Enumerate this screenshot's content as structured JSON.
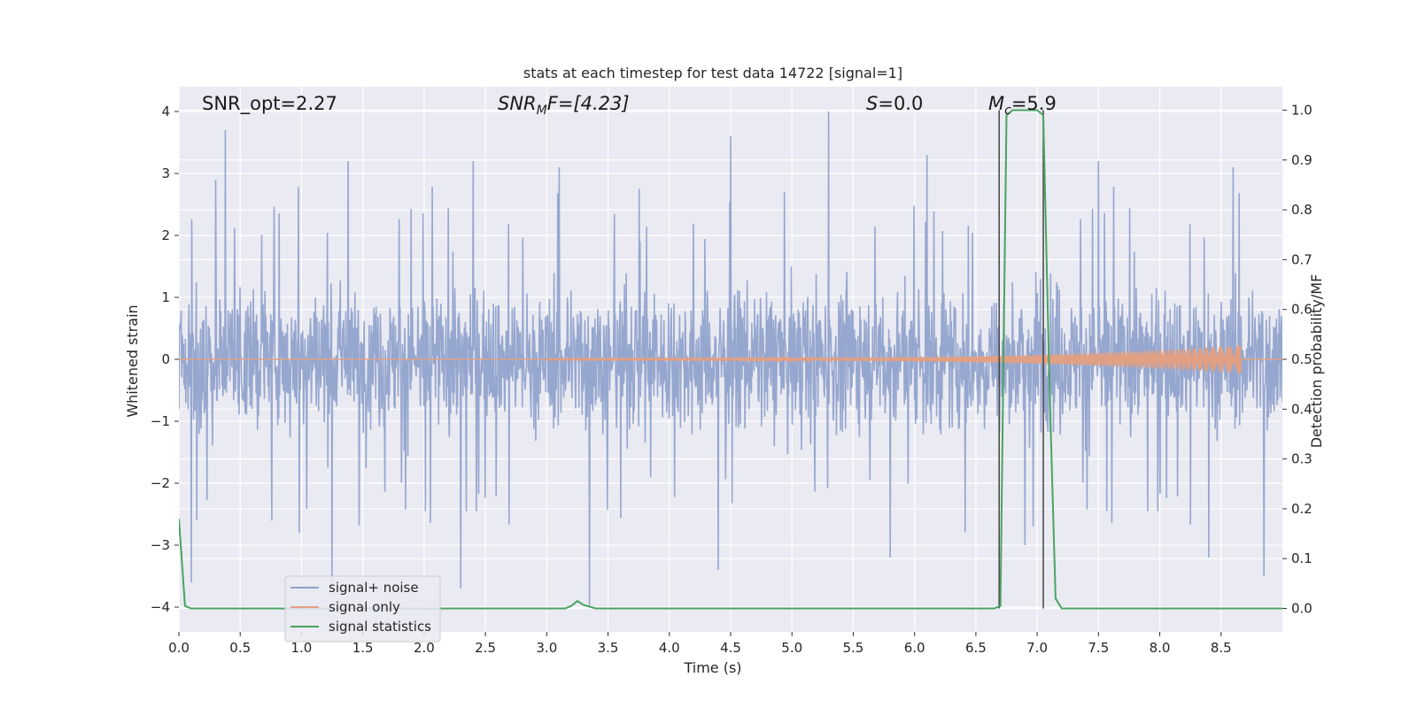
{
  "chart_data": {
    "type": "line",
    "title": "stats at each timestep for test data 14722 [signal=1]",
    "xlabel": "Time (s)",
    "ylabel_left": "Whitened strain",
    "ylabel_right": "Detection probability/MF",
    "xlim": [
      0.0,
      9.0
    ],
    "ylim_left": [
      -4.4,
      4.4
    ],
    "ylim_right": [
      -0.047,
      1.047
    ],
    "x_ticks": [
      "0.0",
      "0.5",
      "1.0",
      "1.5",
      "2.0",
      "2.5",
      "3.0",
      "3.5",
      "4.0",
      "4.5",
      "5.0",
      "5.5",
      "6.0",
      "6.5",
      "7.0",
      "7.5",
      "8.0",
      "8.5"
    ],
    "y_left_ticks": [
      "4",
      "3",
      "2",
      "1",
      "0",
      "−1",
      "−2",
      "−3",
      "−4"
    ],
    "y_right_ticks": [
      "1.0",
      "0.9",
      "0.8",
      "0.7",
      "0.6",
      "0.5",
      "0.4",
      "0.3",
      "0.2",
      "0.1",
      "0.0"
    ],
    "grid": true,
    "legend_position": "lower-left",
    "background": "#eaeaf2",
    "colors": {
      "noise": "#8da0cb",
      "signal": "#e1a083",
      "stats": "#4aa361",
      "vline": "#444444"
    },
    "annotations": {
      "snr_opt": "SNR_opt=2.27",
      "snr_mf_prefix": "SNR",
      "snr_mf_sub": "M",
      "snr_mf_rest": "F=[4.23]",
      "s_prefix": "S",
      "s_rest": "=0.0",
      "mc_prefix": "M",
      "mc_sub": "c",
      "mc_rest": "=5.9"
    },
    "vertical_lines": [
      6.69,
      7.05
    ],
    "noise_envelope": {
      "upper_typical": 1.8,
      "lower_typical": -1.8,
      "peaks": [
        {
          "x": 0.38,
          "y": 3.7
        },
        {
          "x": 0.3,
          "y": 2.9
        },
        {
          "x": 1.38,
          "y": 3.2
        },
        {
          "x": 2.4,
          "y": 3.2
        },
        {
          "x": 3.1,
          "y": 3.1
        },
        {
          "x": 4.5,
          "y": 3.6
        },
        {
          "x": 5.3,
          "y": 4.0
        },
        {
          "x": 6.1,
          "y": 3.3
        },
        {
          "x": 7.5,
          "y": 3.2
        },
        {
          "x": 8.6,
          "y": 3.1
        }
      ],
      "troughs": [
        {
          "x": 0.1,
          "y": -3.6
        },
        {
          "x": 1.25,
          "y": -3.7
        },
        {
          "x": 2.3,
          "y": -3.7
        },
        {
          "x": 3.35,
          "y": -4.0
        },
        {
          "x": 4.4,
          "y": -3.4
        },
        {
          "x": 5.8,
          "y": -3.2
        },
        {
          "x": 6.9,
          "y": -3.0
        },
        {
          "x": 8.4,
          "y": -3.2
        },
        {
          "x": 8.85,
          "y": -3.5
        }
      ]
    },
    "signal_only": {
      "start": 3.0,
      "end": 8.66,
      "max_amplitude": 0.22
    },
    "series": [
      {
        "name": "signal+ noise",
        "axis": "left"
      },
      {
        "name": "signal only",
        "axis": "left"
      },
      {
        "name": "signal statistics",
        "axis": "right",
        "x": [
          0.0,
          0.05,
          0.1,
          0.5,
          3.15,
          3.2,
          3.25,
          3.3,
          3.4,
          6.65,
          6.7,
          6.75,
          6.8,
          7.0,
          7.05,
          7.1,
          7.15,
          7.2,
          9.0
        ],
        "y": [
          0.18,
          0.005,
          0.0,
          0.0,
          0.0,
          0.005,
          0.015,
          0.007,
          0.0,
          0.0,
          0.005,
          0.99,
          1.0,
          1.0,
          0.99,
          0.45,
          0.02,
          0.0,
          0.0
        ]
      }
    ]
  }
}
